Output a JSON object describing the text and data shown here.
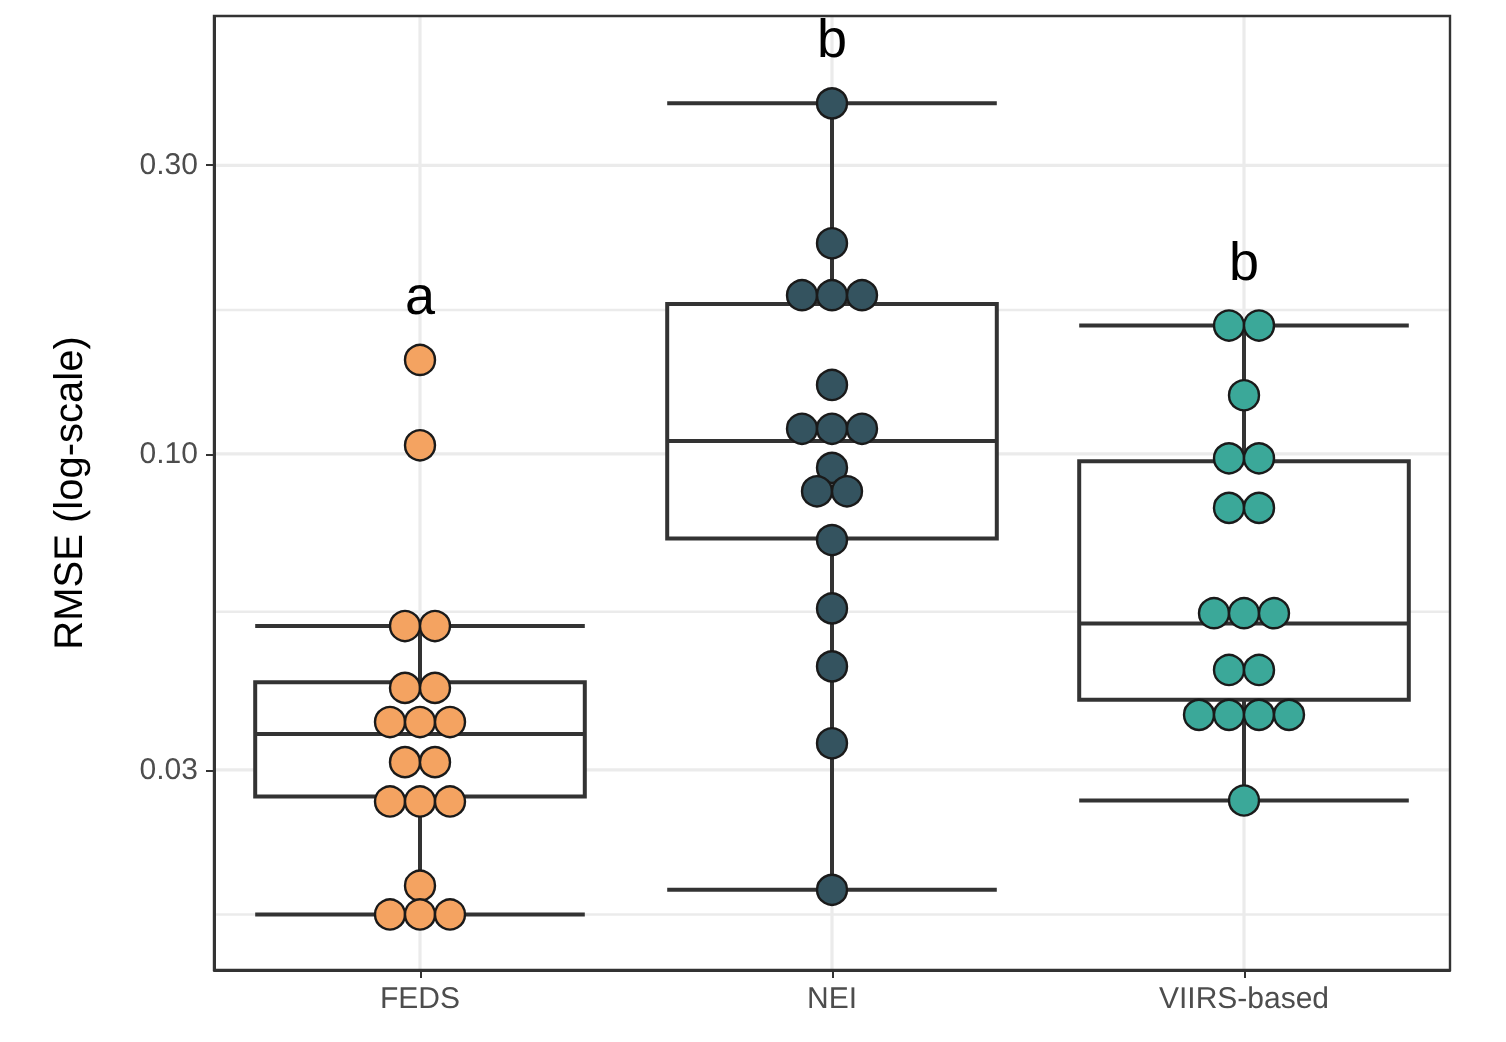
{
  "chart_data": {
    "type": "box",
    "ylabel": "RMSE (log-scale)",
    "categories": [
      "FEDS",
      "NEI",
      "VIIRS-based"
    ],
    "boxes": [
      {
        "low": 0.0173,
        "q1": 0.0271,
        "median": 0.0344,
        "q3": 0.0419,
        "high": 0.0519
      },
      {
        "low": 0.019,
        "q1": 0.0724,
        "median": 0.105,
        "q3": 0.177,
        "high": 0.38
      },
      {
        "low": 0.0267,
        "q1": 0.0392,
        "median": 0.0524,
        "q3": 0.0972,
        "high": 0.163
      }
    ],
    "series": [
      {
        "type": "scatter",
        "color": "#f4a361",
        "x": [
          "FEDS",
          "FEDS",
          "FEDS",
          "FEDS",
          "FEDS",
          "FEDS",
          "FEDS",
          "FEDS",
          "FEDS",
          "FEDS",
          "FEDS",
          "FEDS",
          "FEDS",
          "FEDS",
          "FEDS",
          "FEDS",
          "FEDS",
          "FEDS"
        ],
        "values": [
          0.143,
          0.1033,
          0.0519,
          0.0519,
          0.041,
          0.041,
          0.036,
          0.036,
          0.036,
          0.0309,
          0.0309,
          0.0266,
          0.0266,
          0.0266,
          0.0193,
          0.0173,
          0.0173,
          0.0173
        ]
      },
      {
        "type": "scatter",
        "color": "#34535f",
        "x": [
          "NEI",
          "NEI",
          "NEI",
          "NEI",
          "NEI",
          "NEI",
          "NEI",
          "NEI",
          "NEI",
          "NEI",
          "NEI",
          "NEI",
          "NEI",
          "NEI",
          "NEI",
          "NEI",
          "NEI"
        ],
        "values": [
          0.38,
          0.223,
          0.183,
          0.183,
          0.183,
          0.13,
          0.11,
          0.11,
          0.11,
          0.0948,
          0.0867,
          0.0867,
          0.072,
          0.0555,
          0.0445,
          0.0332,
          0.019
        ]
      },
      {
        "type": "scatter",
        "color": "#3ba899",
        "x": [
          "VIIRS-based",
          "VIIRS-based",
          "VIIRS-based",
          "VIIRS-based",
          "VIIRS-based",
          "VIIRS-based",
          "VIIRS-based",
          "VIIRS-based",
          "VIIRS-based",
          "VIIRS-based",
          "VIIRS-based",
          "VIIRS-based",
          "VIIRS-based",
          "VIIRS-based",
          "VIIRS-based",
          "VIIRS-based",
          "VIIRS-based"
        ],
        "values": [
          0.163,
          0.163,
          0.125,
          0.0983,
          0.0983,
          0.0814,
          0.0814,
          0.0545,
          0.0545,
          0.0545,
          0.0439,
          0.0439,
          0.037,
          0.037,
          0.037,
          0.037,
          0.0267
        ]
      }
    ],
    "annotations": [
      "a",
      "b",
      "b"
    ],
    "ylim": [
      0.014,
      0.53
    ],
    "yticks": [
      {
        "value": 0.0173,
        "label": null
      },
      {
        "value": 0.03,
        "label": "0.03"
      },
      {
        "value": 0.0548,
        "label": null
      },
      {
        "value": 0.1,
        "label": "0.10"
      },
      {
        "value": 0.173,
        "label": null
      },
      {
        "value": 0.3,
        "label": "0.30"
      }
    ],
    "log": "y",
    "grid": true,
    "marker": "circle"
  }
}
